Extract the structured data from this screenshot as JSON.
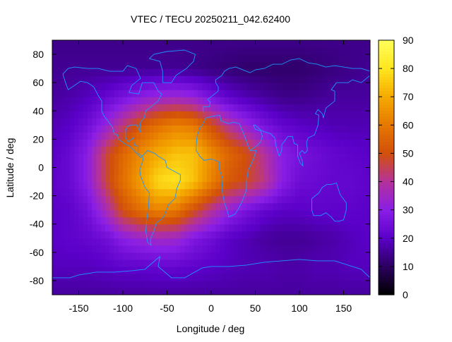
{
  "chart_data": {
    "type": "heatmap",
    "title": "VTEC / TECU 20250211_042.62400",
    "xlabel": "Longitude / deg",
    "ylabel": "Latitude / deg",
    "xlim": [
      -180,
      180
    ],
    "ylim": [
      -90,
      90
    ],
    "x_ticks": [
      -150,
      -100,
      -50,
      0,
      50,
      100,
      150
    ],
    "y_ticks": [
      -80,
      -60,
      -40,
      -20,
      0,
      20,
      40,
      60,
      80
    ],
    "colorbar": {
      "range": [
        0,
        90
      ],
      "ticks": [
        0,
        10,
        20,
        30,
        40,
        50,
        60,
        70,
        80,
        90
      ],
      "palette": [
        "#000000",
        "#2b0060",
        "#5a00c8",
        "#8a1ee6",
        "#b4329a",
        "#d2500a",
        "#e67800",
        "#f5aa00",
        "#ffe61e",
        "#ffff5a"
      ]
    },
    "field_grid": {
      "step_deg": 20,
      "lon": [
        -180,
        -160,
        -140,
        -120,
        -100,
        -80,
        -60,
        -40,
        -20,
        0,
        20,
        40,
        60,
        80,
        100,
        120,
        140,
        160,
        180
      ],
      "lat": [
        -90,
        -70,
        -50,
        -30,
        -10,
        10,
        30,
        50,
        70,
        90
      ],
      "vtec": [
        [
          16,
          16,
          16,
          16,
          16,
          16,
          16,
          16,
          16,
          16,
          16,
          16,
          16,
          16,
          16,
          16,
          16,
          16,
          16
        ],
        [
          19,
          19,
          19,
          20,
          21,
          21,
          22,
          22,
          21,
          20,
          19,
          18,
          18,
          17,
          17,
          18,
          18,
          19,
          19
        ],
        [
          20,
          21,
          22,
          24,
          30,
          33,
          35,
          34,
          28,
          24,
          20,
          18,
          16,
          15,
          15,
          16,
          17,
          19,
          20
        ],
        [
          20,
          21,
          25,
          36,
          50,
          58,
          62,
          60,
          50,
          40,
          32,
          26,
          22,
          20,
          20,
          21,
          21,
          21,
          20
        ],
        [
          21,
          23,
          30,
          46,
          58,
          68,
          78,
          80,
          74,
          62,
          52,
          48,
          42,
          30,
          24,
          23,
          22,
          22,
          21
        ],
        [
          20,
          23,
          30,
          46,
          56,
          64,
          70,
          74,
          74,
          64,
          56,
          50,
          40,
          30,
          26,
          24,
          22,
          21,
          20
        ],
        [
          18,
          20,
          24,
          32,
          42,
          52,
          58,
          62,
          60,
          50,
          40,
          32,
          26,
          22,
          20,
          19,
          18,
          18,
          18
        ],
        [
          16,
          17,
          19,
          22,
          26,
          30,
          33,
          34,
          32,
          26,
          21,
          18,
          16,
          14,
          14,
          15,
          16,
          16,
          16
        ],
        [
          15,
          15,
          15,
          15,
          15,
          15,
          15,
          15,
          14,
          13,
          12,
          11,
          11,
          11,
          11,
          12,
          13,
          14,
          15
        ],
        [
          14,
          14,
          14,
          14,
          14,
          14,
          14,
          14,
          14,
          14,
          14,
          14,
          14,
          14,
          14,
          14,
          14,
          14,
          14
        ]
      ]
    },
    "coastlines_lonlat": [
      [
        [
          -168,
          66
        ],
        [
          -162,
          70
        ],
        [
          -155,
          71
        ],
        [
          -140,
          70
        ],
        [
          -128,
          70
        ],
        [
          -115,
          68
        ],
        [
          -100,
          68
        ],
        [
          -95,
          72
        ],
        [
          -85,
          70
        ],
        [
          -80,
          63
        ],
        [
          -90,
          58
        ],
        [
          -93,
          53
        ],
        [
          -82,
          52
        ],
        [
          -78,
          60
        ],
        [
          -65,
          60
        ],
        [
          -60,
          54
        ],
        [
          -56,
          52
        ],
        [
          -60,
          47
        ],
        [
          -66,
          44
        ],
        [
          -70,
          42
        ],
        [
          -74,
          40
        ],
        [
          -76,
          35
        ],
        [
          -80,
          32
        ],
        [
          -81,
          27
        ],
        [
          -80,
          25
        ],
        [
          -82,
          27
        ],
        [
          -84,
          30
        ],
        [
          -90,
          30
        ],
        [
          -95,
          29
        ],
        [
          -97,
          26
        ],
        [
          -97,
          21
        ],
        [
          -94,
          18
        ],
        [
          -88,
          21
        ],
        [
          -87,
          16
        ],
        [
          -83,
          15
        ],
        [
          -83,
          10
        ],
        [
          -80,
          9
        ],
        [
          -78,
          8
        ],
        [
          -80,
          7
        ],
        [
          -86,
          11
        ],
        [
          -92,
          15
        ],
        [
          -96,
          16
        ],
        [
          -105,
          20
        ],
        [
          -106,
          23
        ],
        [
          -110,
          24
        ],
        [
          -112,
          29
        ],
        [
          -115,
          31
        ],
        [
          -117,
          33
        ],
        [
          -121,
          36
        ],
        [
          -124,
          40
        ],
        [
          -124,
          47
        ],
        [
          -128,
          51
        ],
        [
          -133,
          57
        ],
        [
          -140,
          60
        ],
        [
          -148,
          61
        ],
        [
          -155,
          58
        ],
        [
          -162,
          55
        ],
        [
          -165,
          60
        ],
        [
          -168,
          66
        ]
      ],
      [
        [
          -78,
          8
        ],
        [
          -72,
          12
        ],
        [
          -64,
          10
        ],
        [
          -60,
          8
        ],
        [
          -52,
          5
        ],
        [
          -50,
          0
        ],
        [
          -44,
          -2
        ],
        [
          -35,
          -5
        ],
        [
          -35,
          -9
        ],
        [
          -39,
          -15
        ],
        [
          -41,
          -22
        ],
        [
          -48,
          -26
        ],
        [
          -53,
          -34
        ],
        [
          -57,
          -37
        ],
        [
          -62,
          -39
        ],
        [
          -65,
          -45
        ],
        [
          -69,
          -51
        ],
        [
          -68,
          -55
        ],
        [
          -72,
          -53
        ],
        [
          -74,
          -45
        ],
        [
          -73,
          -37
        ],
        [
          -71,
          -28
        ],
        [
          -70,
          -18
        ],
        [
          -75,
          -14
        ],
        [
          -80,
          -6
        ],
        [
          -81,
          -2
        ],
        [
          -79,
          2
        ],
        [
          -77,
          6
        ],
        [
          -78,
          8
        ]
      ],
      [
        [
          -55,
          60
        ],
        [
          -45,
          60
        ],
        [
          -40,
          65
        ],
        [
          -28,
          70
        ],
        [
          -20,
          75
        ],
        [
          -18,
          80
        ],
        [
          -30,
          83
        ],
        [
          -50,
          82
        ],
        [
          -65,
          80
        ],
        [
          -70,
          77
        ],
        [
          -58,
          75
        ],
        [
          -55,
          68
        ],
        [
          -55,
          60
        ]
      ],
      [
        [
          -17,
          15
        ],
        [
          -16,
          22
        ],
        [
          -13,
          28
        ],
        [
          -10,
          30
        ],
        [
          -6,
          35
        ],
        [
          0,
          36
        ],
        [
          10,
          37
        ],
        [
          11,
          33
        ],
        [
          20,
          31
        ],
        [
          25,
          32
        ],
        [
          32,
          31
        ],
        [
          34,
          28
        ],
        [
          38,
          22
        ],
        [
          42,
          15
        ],
        [
          44,
          12
        ],
        [
          51,
          12
        ],
        [
          48,
          6
        ],
        [
          42,
          -2
        ],
        [
          40,
          -10
        ],
        [
          40,
          -16
        ],
        [
          35,
          -24
        ],
        [
          32,
          -28
        ],
        [
          27,
          -33
        ],
        [
          20,
          -35
        ],
        [
          18,
          -30
        ],
        [
          15,
          -25
        ],
        [
          12,
          -15
        ],
        [
          13,
          -8
        ],
        [
          9,
          -1
        ],
        [
          9,
          4
        ],
        [
          5,
          5
        ],
        [
          0,
          6
        ],
        [
          -8,
          5
        ],
        [
          -13,
          8
        ],
        [
          -17,
          12
        ],
        [
          -17,
          15
        ]
      ],
      [
        [
          -9,
          39
        ],
        [
          -9,
          43
        ],
        [
          -2,
          43
        ],
        [
          -1,
          46
        ],
        [
          -4,
          48
        ],
        [
          2,
          51
        ],
        [
          8,
          54
        ],
        [
          8,
          57
        ],
        [
          5,
          60
        ],
        [
          5,
          62
        ],
        [
          12,
          65
        ],
        [
          15,
          68
        ],
        [
          20,
          70
        ],
        [
          28,
          71
        ],
        [
          40,
          68
        ],
        [
          44,
          67
        ],
        [
          50,
          69
        ],
        [
          60,
          70
        ],
        [
          70,
          73
        ],
        [
          80,
          73
        ],
        [
          90,
          76
        ],
        [
          100,
          77
        ],
        [
          110,
          74
        ],
        [
          120,
          73
        ],
        [
          130,
          71
        ],
        [
          140,
          72
        ],
        [
          150,
          71
        ],
        [
          160,
          70
        ],
        [
          170,
          70
        ],
        [
          180,
          68
        ]
      ],
      [
        [
          44,
          12
        ],
        [
          51,
          15
        ],
        [
          56,
          18
        ],
        [
          58,
          22
        ],
        [
          56,
          26
        ],
        [
          50,
          27
        ],
        [
          48,
          30
        ],
        [
          50,
          30
        ],
        [
          57,
          26
        ],
        [
          62,
          25
        ],
        [
          67,
          24
        ],
        [
          72,
          21
        ],
        [
          73,
          16
        ],
        [
          77,
          8
        ],
        [
          80,
          12
        ],
        [
          80,
          16
        ],
        [
          87,
          22
        ],
        [
          92,
          22
        ],
        [
          94,
          17
        ],
        [
          98,
          16
        ],
        [
          98,
          8
        ],
        [
          101,
          3
        ],
        [
          104,
          1
        ],
        [
          103,
          5
        ],
        [
          100,
          10
        ],
        [
          103,
          12
        ],
        [
          106,
          10
        ],
        [
          109,
          12
        ],
        [
          108,
          18
        ],
        [
          110,
          21
        ],
        [
          117,
          23
        ],
        [
          121,
          30
        ],
        [
          122,
          37
        ],
        [
          118,
          38
        ],
        [
          121,
          41
        ],
        [
          126,
          38
        ],
        [
          127,
          35
        ],
        [
          130,
          42
        ],
        [
          140,
          47
        ],
        [
          140,
          54
        ],
        [
          136,
          55
        ],
        [
          142,
          60
        ],
        [
          155,
          60
        ],
        [
          160,
          62
        ],
        [
          170,
          60
        ],
        [
          180,
          65
        ]
      ],
      [
        [
          114,
          -22
        ],
        [
          114,
          -30
        ],
        [
          116,
          -34
        ],
        [
          124,
          -34
        ],
        [
          130,
          -32
        ],
        [
          136,
          -35
        ],
        [
          140,
          -38
        ],
        [
          145,
          -38
        ],
        [
          150,
          -37
        ],
        [
          153,
          -30
        ],
        [
          153,
          -25
        ],
        [
          146,
          -19
        ],
        [
          142,
          -11
        ],
        [
          136,
          -12
        ],
        [
          131,
          -12
        ],
        [
          126,
          -14
        ],
        [
          122,
          -18
        ],
        [
          114,
          -22
        ]
      ],
      [
        [
          -180,
          -78
        ],
        [
          -160,
          -78
        ],
        [
          -150,
          -76
        ],
        [
          -130,
          -74
        ],
        [
          -110,
          -74
        ],
        [
          -90,
          -73
        ],
        [
          -75,
          -72
        ],
        [
          -62,
          -65
        ],
        [
          -58,
          -63
        ],
        [
          -60,
          -70
        ],
        [
          -45,
          -78
        ],
        [
          -30,
          -78
        ],
        [
          -10,
          -71
        ],
        [
          0,
          -70
        ],
        [
          20,
          -70
        ],
        [
          40,
          -69
        ],
        [
          60,
          -67
        ],
        [
          80,
          -66
        ],
        [
          100,
          -65
        ],
        [
          120,
          -66
        ],
        [
          140,
          -66
        ],
        [
          160,
          -70
        ],
        [
          170,
          -72
        ],
        [
          180,
          -78
        ]
      ]
    ]
  }
}
